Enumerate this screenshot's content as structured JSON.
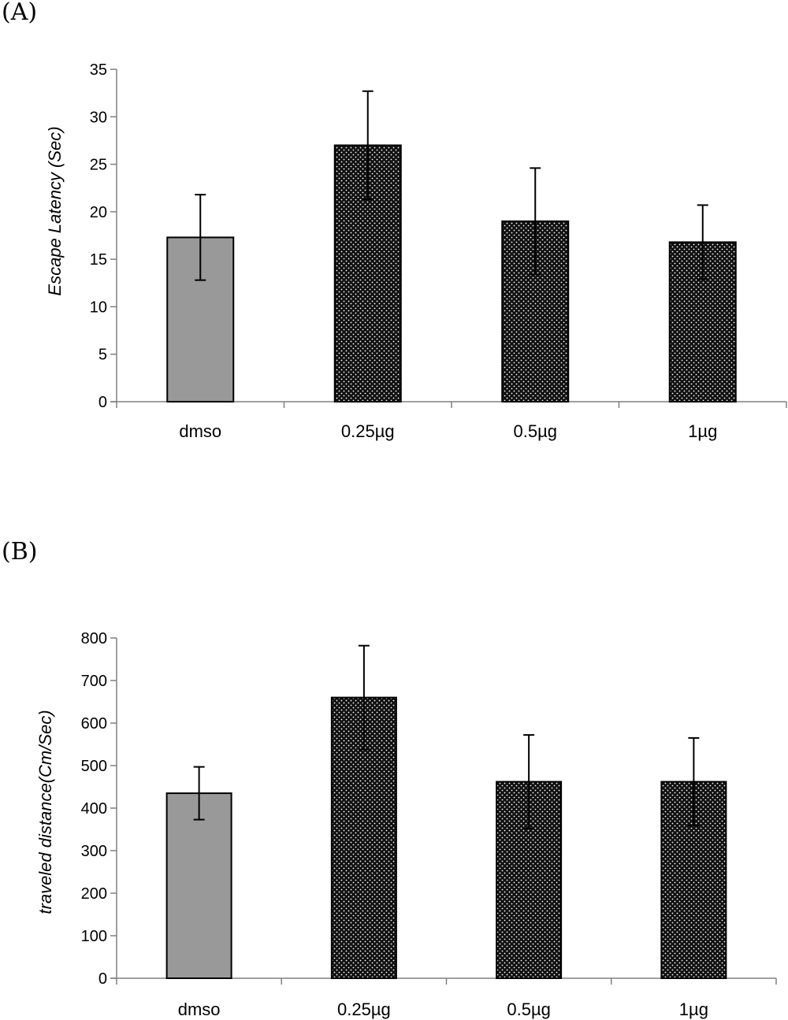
{
  "panels": {
    "a_label": "(A)",
    "b_label": "(B)"
  },
  "colors": {
    "control_bar": "#999999",
    "treatment_bar": "#111111",
    "dots": "#ffffff",
    "axis": "#808080"
  },
  "chart_data": [
    {
      "type": "bar",
      "title": "",
      "xlabel": "",
      "ylabel": "Escape Latency (Sec)",
      "categories": [
        "dmso",
        "0.25µg",
        "0.5µg",
        "1µg"
      ],
      "values": [
        17.3,
        27.0,
        19.0,
        16.8
      ],
      "errors": [
        4.5,
        5.7,
        5.6,
        3.9
      ],
      "ylim": [
        0,
        35
      ],
      "yticks": [
        "0",
        "5",
        "10",
        "15",
        "20",
        "25",
        "30",
        "35"
      ],
      "fills": [
        "gray",
        "dotted-black",
        "dotted-black",
        "dotted-black"
      ],
      "grid": false,
      "legend": "none"
    },
    {
      "type": "bar",
      "title": "",
      "xlabel": "",
      "ylabel": "traveled distance(Cm/Sec)",
      "categories": [
        "dmso",
        "0.25µg",
        "0.5µg",
        "1µg"
      ],
      "values": [
        435,
        660,
        462,
        462
      ],
      "errors": [
        62,
        122,
        110,
        103
      ],
      "ylim": [
        0,
        800
      ],
      "yticks": [
        "0",
        "100",
        "200",
        "300",
        "400",
        "500",
        "600",
        "700",
        "800"
      ],
      "fills": [
        "gray",
        "dotted-black",
        "dotted-black",
        "dotted-black"
      ],
      "grid": false,
      "legend": "none"
    }
  ]
}
